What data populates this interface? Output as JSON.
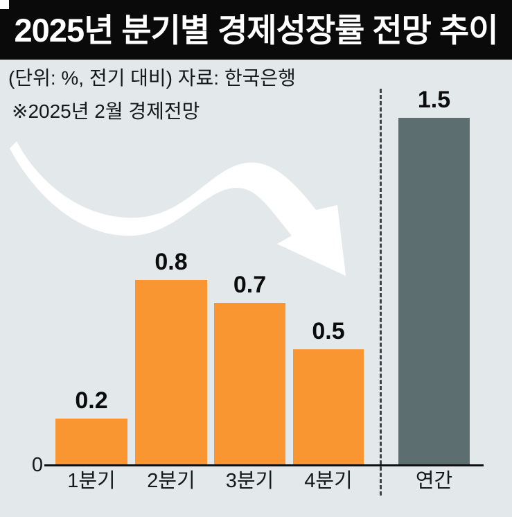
{
  "header": {
    "title": "2025년 분기별 경제성장률 전망 추이"
  },
  "subtitle": "(단위: %, 전기 대비)  자료: 한국은행",
  "note": "※2025년 2월 경제전망",
  "axis": {
    "zero_label": "0"
  },
  "colors": {
    "background": "#e3e9eb",
    "header_bg": "#0a0a0a",
    "title_text": "#ffffff",
    "quarter": "#fa9632",
    "annual": "#5d6e71",
    "axis": "#101010",
    "separator": "#3b4347",
    "arrow": "#ffffff"
  },
  "chart_data": {
    "type": "bar",
    "title": "2025년 분기별 경제성장률 전망 추이",
    "unit_note": "(단위: %, 전기 대비)",
    "source": "자료: 한국은행",
    "forecast_note": "※2025년 2월 경제전망",
    "categories": [
      "1분기",
      "2분기",
      "3분기",
      "4분기",
      "연간"
    ],
    "values": [
      0.2,
      0.8,
      0.7,
      0.5,
      1.5
    ],
    "value_labels": [
      "0.2",
      "0.8",
      "0.7",
      "0.5",
      "1.5"
    ],
    "bar_palette": [
      "quarter",
      "quarter",
      "quarter",
      "quarter",
      "annual"
    ],
    "baseline_label": "0",
    "ylim": [
      0,
      1.6
    ],
    "grid": false,
    "legend": false,
    "separator_after_index": 3,
    "annotation": "downward-swoosh-arrow"
  }
}
